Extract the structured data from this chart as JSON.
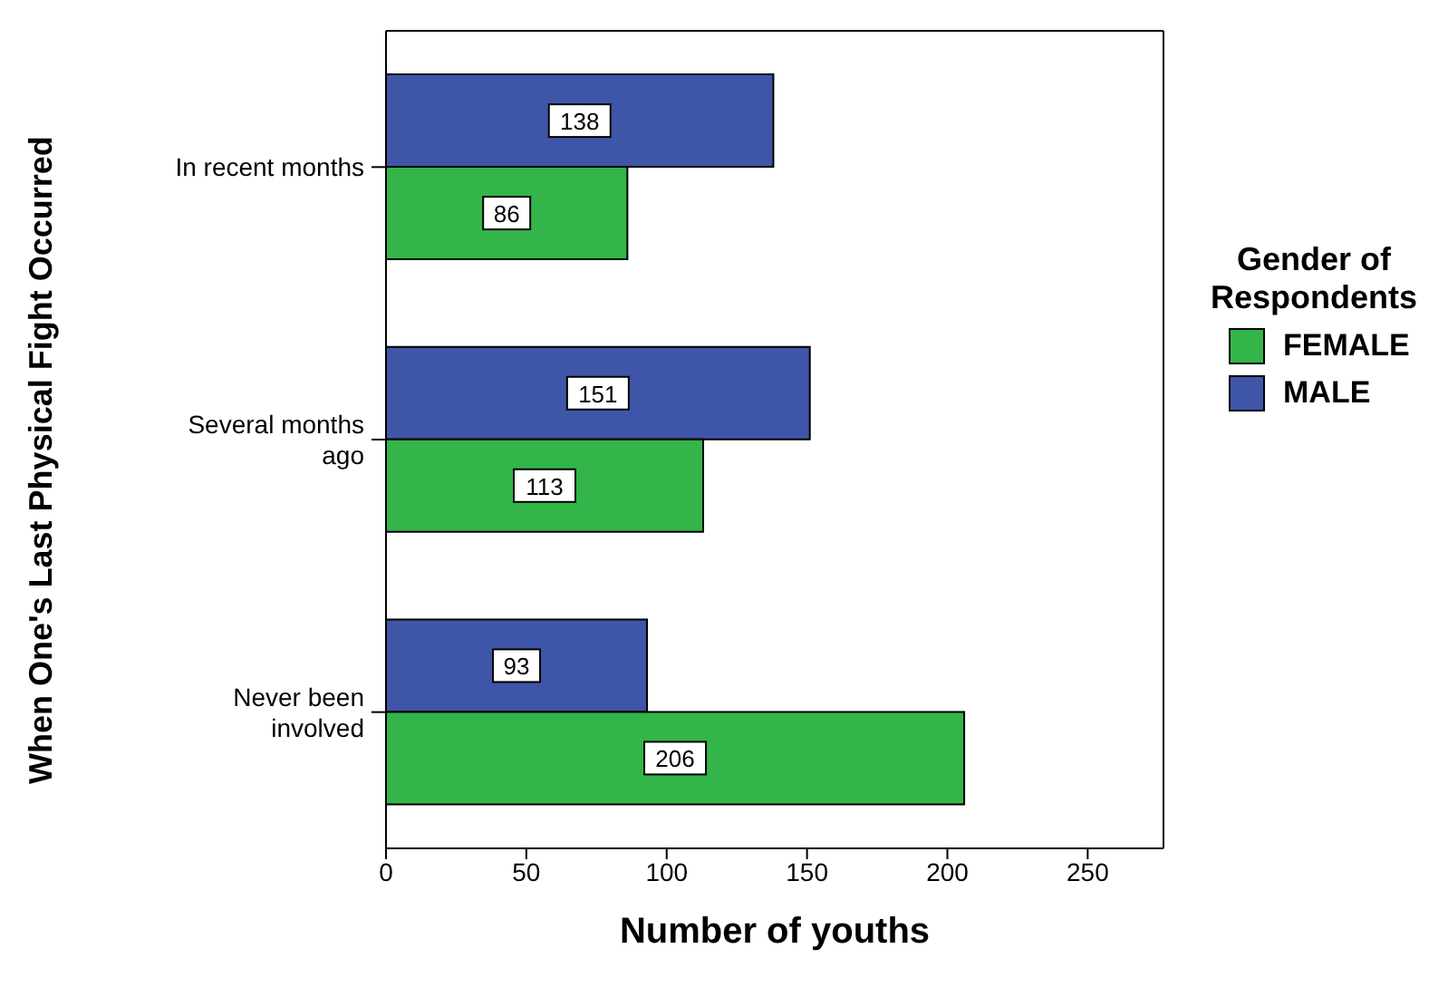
{
  "chart_data": {
    "type": "bar",
    "orientation": "horizontal",
    "xlabel": "Number of youths",
    "ylabel": "When One's Last Physical Fight Occurred",
    "legend_title": "Gender of Respondents",
    "categories": [
      "In recent months",
      "Several months ago",
      "Never been involved"
    ],
    "series": [
      {
        "name": "FEMALE",
        "color": "#33b54a",
        "values": [
          86,
          113,
          206
        ]
      },
      {
        "name": "MALE",
        "color": "#3f56a8",
        "values": [
          138,
          151,
          93
        ]
      }
    ],
    "xlim": [
      0,
      277
    ],
    "xticks": [
      0,
      50,
      100,
      150,
      200,
      250
    ],
    "data_labels": true,
    "legend": "right"
  }
}
